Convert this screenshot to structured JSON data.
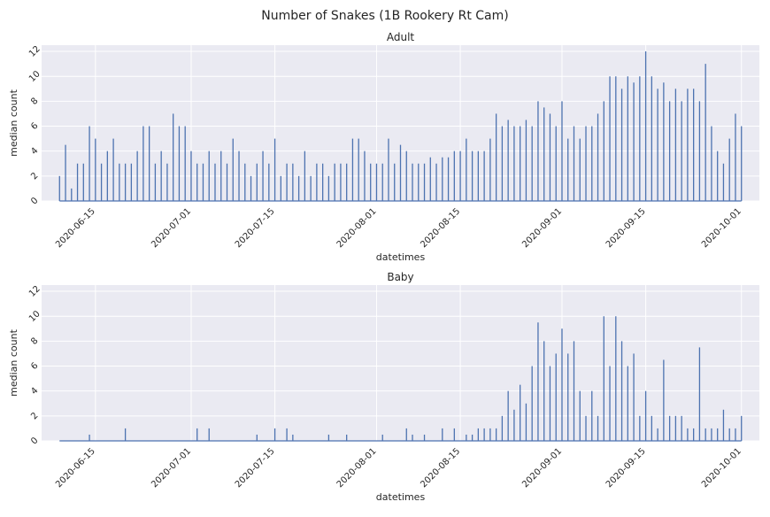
{
  "figure": {
    "title": "Number of Snakes (1B Rookery Rt Cam)"
  },
  "colors": {
    "background": "#eaeaf2",
    "grid": "#ffffff",
    "line": "#4c72b0",
    "text": "#262626"
  },
  "chart_data": [
    {
      "type": "line",
      "title": "Adult",
      "xlabel": "datetimes",
      "ylabel": "median count",
      "x_ticks": [
        "2020-06-15",
        "2020-07-01",
        "2020-07-15",
        "2020-08-01",
        "2020-08-15",
        "2020-09-01",
        "2020-09-15",
        "2020-10-01"
      ],
      "xlim": [
        "2020-06-06",
        "2020-10-04"
      ],
      "ylim": [
        0,
        12.5
      ],
      "y_ticks": [
        "0",
        "2",
        "4",
        "6",
        "8",
        "10",
        "12"
      ],
      "grid": true,
      "series": [
        {
          "x_range": [
            "2020-06-09",
            "2020-10-01"
          ],
          "spikes": [
            [
              "2020-06-09",
              2
            ],
            [
              "2020-06-10",
              4.5
            ],
            [
              "2020-06-11",
              1
            ],
            [
              "2020-06-12",
              3
            ],
            [
              "2020-06-13",
              3
            ],
            [
              "2020-06-14",
              6
            ],
            [
              "2020-06-15",
              5
            ],
            [
              "2020-06-16",
              3
            ],
            [
              "2020-06-17",
              4
            ],
            [
              "2020-06-18",
              5
            ],
            [
              "2020-06-19",
              3
            ],
            [
              "2020-06-20",
              3
            ],
            [
              "2020-06-21",
              3
            ],
            [
              "2020-06-22",
              4
            ],
            [
              "2020-06-23",
              6
            ],
            [
              "2020-06-24",
              6
            ],
            [
              "2020-06-25",
              3
            ],
            [
              "2020-06-26",
              4
            ],
            [
              "2020-06-27",
              3
            ],
            [
              "2020-06-28",
              7
            ],
            [
              "2020-06-29",
              6
            ],
            [
              "2020-06-30",
              6
            ],
            [
              "2020-07-01",
              4
            ],
            [
              "2020-07-02",
              3
            ],
            [
              "2020-07-03",
              3
            ],
            [
              "2020-07-04",
              4
            ],
            [
              "2020-07-05",
              3
            ],
            [
              "2020-07-06",
              4
            ],
            [
              "2020-07-07",
              3
            ],
            [
              "2020-07-08",
              5
            ],
            [
              "2020-07-09",
              4
            ],
            [
              "2020-07-10",
              3
            ],
            [
              "2020-07-11",
              2
            ],
            [
              "2020-07-12",
              3
            ],
            [
              "2020-07-13",
              4
            ],
            [
              "2020-07-14",
              3
            ],
            [
              "2020-07-15",
              5
            ],
            [
              "2020-07-16",
              2
            ],
            [
              "2020-07-17",
              3
            ],
            [
              "2020-07-18",
              3
            ],
            [
              "2020-07-19",
              2
            ],
            [
              "2020-07-20",
              4
            ],
            [
              "2020-07-21",
              2
            ],
            [
              "2020-07-22",
              3
            ],
            [
              "2020-07-23",
              3
            ],
            [
              "2020-07-24",
              2
            ],
            [
              "2020-07-25",
              3
            ],
            [
              "2020-07-26",
              3
            ],
            [
              "2020-07-27",
              3
            ],
            [
              "2020-07-28",
              5
            ],
            [
              "2020-07-29",
              5
            ],
            [
              "2020-07-30",
              4
            ],
            [
              "2020-07-31",
              3
            ],
            [
              "2020-08-01",
              3
            ],
            [
              "2020-08-02",
              3
            ],
            [
              "2020-08-03",
              5
            ],
            [
              "2020-08-04",
              3
            ],
            [
              "2020-08-05",
              4.5
            ],
            [
              "2020-08-06",
              4
            ],
            [
              "2020-08-07",
              3
            ],
            [
              "2020-08-08",
              3
            ],
            [
              "2020-08-09",
              3
            ],
            [
              "2020-08-10",
              3.5
            ],
            [
              "2020-08-11",
              3
            ],
            [
              "2020-08-12",
              3.5
            ],
            [
              "2020-08-13",
              3.5
            ],
            [
              "2020-08-14",
              4
            ],
            [
              "2020-08-15",
              4
            ],
            [
              "2020-08-16",
              5
            ],
            [
              "2020-08-17",
              4
            ],
            [
              "2020-08-18",
              4
            ],
            [
              "2020-08-19",
              4
            ],
            [
              "2020-08-20",
              5
            ],
            [
              "2020-08-21",
              7
            ],
            [
              "2020-08-22",
              6
            ],
            [
              "2020-08-23",
              6.5
            ],
            [
              "2020-08-24",
              6
            ],
            [
              "2020-08-25",
              6
            ],
            [
              "2020-08-26",
              6.5
            ],
            [
              "2020-08-27",
              6
            ],
            [
              "2020-08-28",
              8
            ],
            [
              "2020-08-29",
              7.5
            ],
            [
              "2020-08-30",
              7
            ],
            [
              "2020-08-31",
              6
            ],
            [
              "2020-09-01",
              8
            ],
            [
              "2020-09-02",
              5
            ],
            [
              "2020-09-03",
              6
            ],
            [
              "2020-09-04",
              5
            ],
            [
              "2020-09-05",
              6
            ],
            [
              "2020-09-06",
              6
            ],
            [
              "2020-09-07",
              7
            ],
            [
              "2020-09-08",
              8
            ],
            [
              "2020-09-09",
              10
            ],
            [
              "2020-09-10",
              10
            ],
            [
              "2020-09-11",
              9
            ],
            [
              "2020-09-12",
              10
            ],
            [
              "2020-09-13",
              9.5
            ],
            [
              "2020-09-14",
              10
            ],
            [
              "2020-09-15",
              12
            ],
            [
              "2020-09-16",
              10
            ],
            [
              "2020-09-17",
              9
            ],
            [
              "2020-09-18",
              9.5
            ],
            [
              "2020-09-19",
              8
            ],
            [
              "2020-09-20",
              9
            ],
            [
              "2020-09-21",
              8
            ],
            [
              "2020-09-22",
              9
            ],
            [
              "2020-09-23",
              9
            ],
            [
              "2020-09-24",
              8
            ],
            [
              "2020-09-25",
              11
            ],
            [
              "2020-09-26",
              6
            ],
            [
              "2020-09-27",
              4
            ],
            [
              "2020-09-28",
              3
            ],
            [
              "2020-09-29",
              5
            ],
            [
              "2020-09-30",
              7
            ],
            [
              "2020-10-01",
              6
            ]
          ]
        }
      ]
    },
    {
      "type": "line",
      "title": "Baby",
      "xlabel": "datetimes",
      "ylabel": "median count",
      "x_ticks": [
        "2020-06-15",
        "2020-07-01",
        "2020-07-15",
        "2020-08-01",
        "2020-08-15",
        "2020-09-01",
        "2020-09-15",
        "2020-10-01"
      ],
      "xlim": [
        "2020-06-06",
        "2020-10-04"
      ],
      "ylim": [
        0,
        12.5
      ],
      "y_ticks": [
        "0",
        "2",
        "4",
        "6",
        "8",
        "10",
        "12"
      ],
      "grid": true,
      "series": [
        {
          "x_range": [
            "2020-06-09",
            "2020-10-01"
          ],
          "spikes": [
            [
              "2020-06-14",
              0.5
            ],
            [
              "2020-06-20",
              1
            ],
            [
              "2020-07-02",
              1
            ],
            [
              "2020-07-04",
              1
            ],
            [
              "2020-07-12",
              0.5
            ],
            [
              "2020-07-15",
              1
            ],
            [
              "2020-07-17",
              1
            ],
            [
              "2020-07-18",
              0.5
            ],
            [
              "2020-07-24",
              0.5
            ],
            [
              "2020-07-27",
              0.5
            ],
            [
              "2020-08-02",
              0.5
            ],
            [
              "2020-08-06",
              1
            ],
            [
              "2020-08-07",
              0.5
            ],
            [
              "2020-08-09",
              0.5
            ],
            [
              "2020-08-12",
              1
            ],
            [
              "2020-08-14",
              1
            ],
            [
              "2020-08-16",
              0.5
            ],
            [
              "2020-08-17",
              0.5
            ],
            [
              "2020-08-18",
              1
            ],
            [
              "2020-08-19",
              1
            ],
            [
              "2020-08-20",
              1
            ],
            [
              "2020-08-21",
              1
            ],
            [
              "2020-08-22",
              2
            ],
            [
              "2020-08-23",
              4
            ],
            [
              "2020-08-24",
              2.5
            ],
            [
              "2020-08-25",
              4.5
            ],
            [
              "2020-08-26",
              3
            ],
            [
              "2020-08-27",
              6
            ],
            [
              "2020-08-28",
              9.5
            ],
            [
              "2020-08-29",
              8
            ],
            [
              "2020-08-30",
              6
            ],
            [
              "2020-08-31",
              7
            ],
            [
              "2020-09-01",
              9
            ],
            [
              "2020-09-02",
              7
            ],
            [
              "2020-09-03",
              8
            ],
            [
              "2020-09-04",
              4
            ],
            [
              "2020-09-05",
              2
            ],
            [
              "2020-09-06",
              4
            ],
            [
              "2020-09-07",
              2
            ],
            [
              "2020-09-08",
              10
            ],
            [
              "2020-09-09",
              6
            ],
            [
              "2020-09-10",
              10
            ],
            [
              "2020-09-11",
              8
            ],
            [
              "2020-09-12",
              6
            ],
            [
              "2020-09-13",
              7
            ],
            [
              "2020-09-14",
              2
            ],
            [
              "2020-09-15",
              4
            ],
            [
              "2020-09-16",
              2
            ],
            [
              "2020-09-17",
              1
            ],
            [
              "2020-09-18",
              6.5
            ],
            [
              "2020-09-19",
              2
            ],
            [
              "2020-09-20",
              2
            ],
            [
              "2020-09-21",
              2
            ],
            [
              "2020-09-22",
              1
            ],
            [
              "2020-09-23",
              1
            ],
            [
              "2020-09-24",
              7.5
            ],
            [
              "2020-09-25",
              1
            ],
            [
              "2020-09-26",
              1
            ],
            [
              "2020-09-27",
              1
            ],
            [
              "2020-09-28",
              2.5
            ],
            [
              "2020-09-29",
              1
            ],
            [
              "2020-09-30",
              1
            ],
            [
              "2020-10-01",
              2
            ]
          ]
        }
      ]
    }
  ]
}
